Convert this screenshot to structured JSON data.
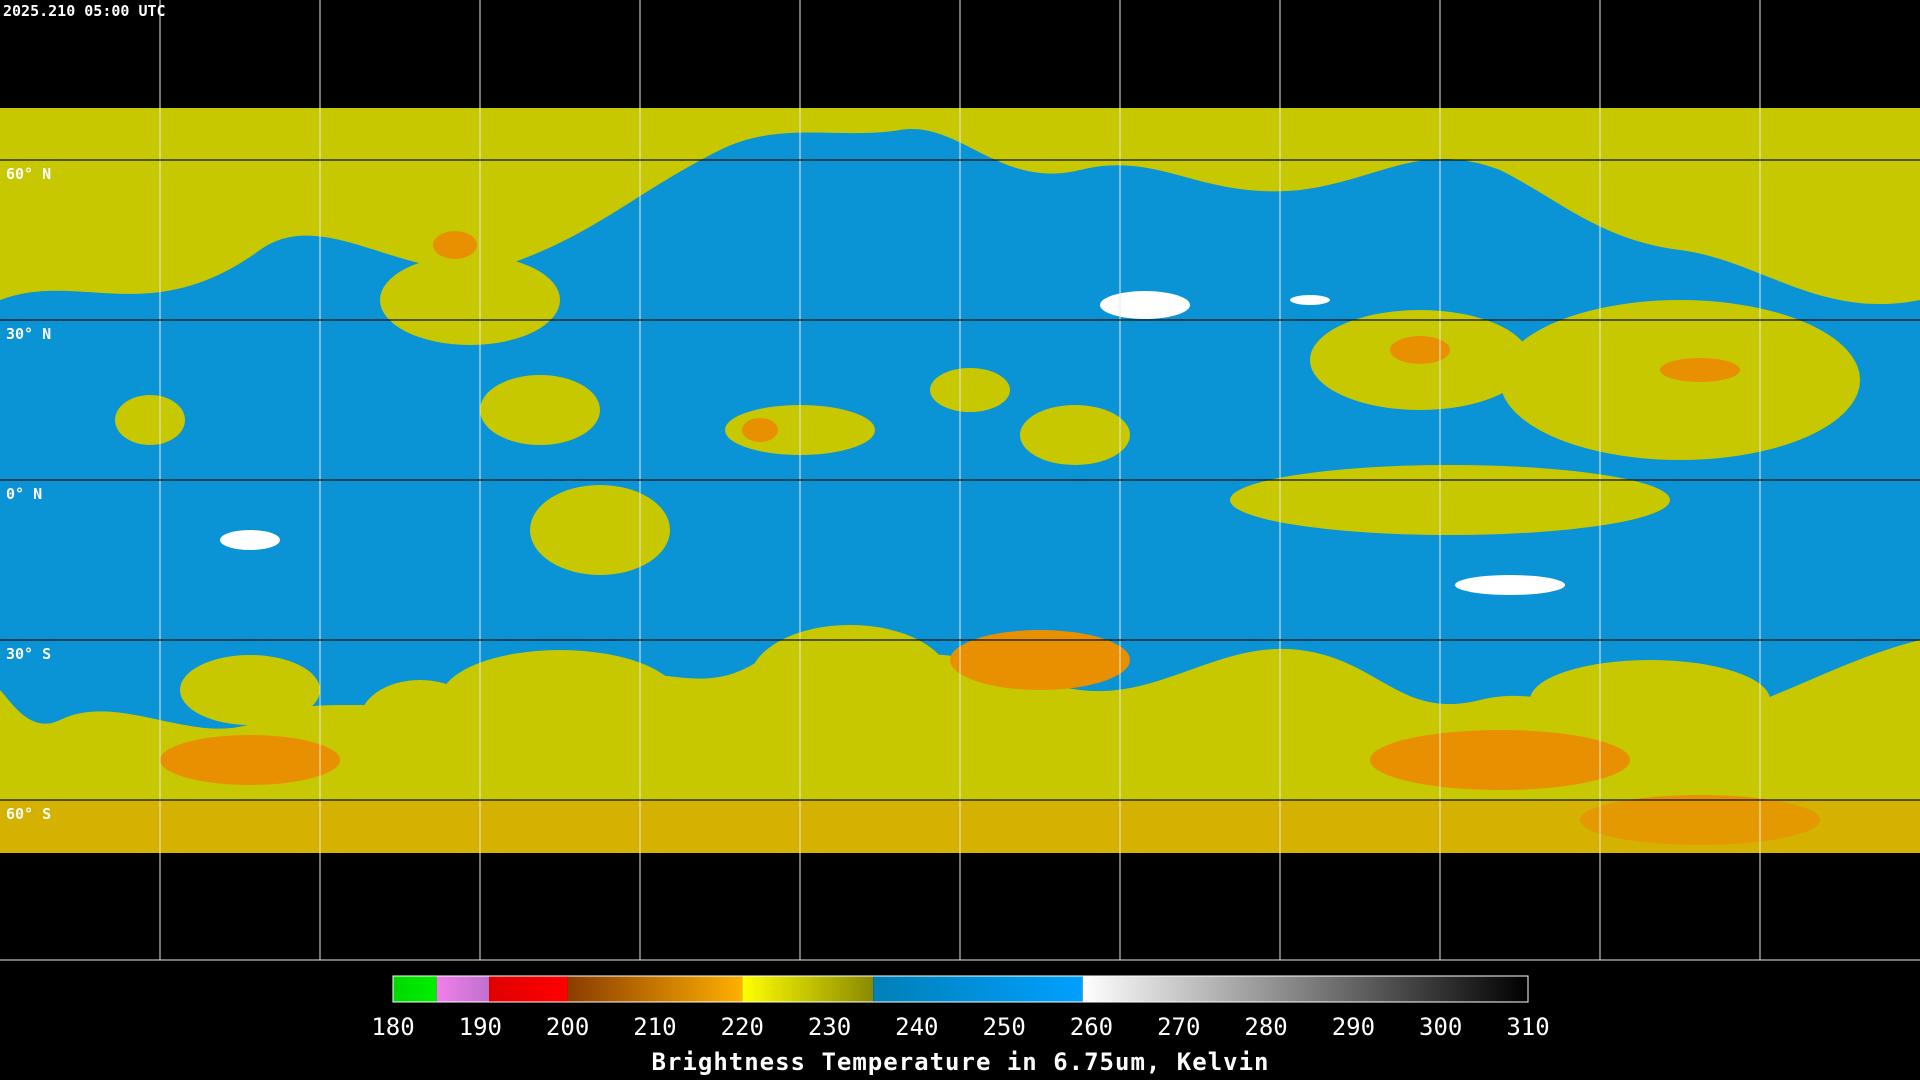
{
  "header": {
    "timestamp": "2025.210 05:00 UTC"
  },
  "map": {
    "latitudes": [
      {
        "value": 60,
        "label": "60° N"
      },
      {
        "value": 30,
        "label": "30° N"
      },
      {
        "value": 0,
        "label": "0° N"
      },
      {
        "value": -30,
        "label": "30° S"
      },
      {
        "value": -60,
        "label": "60° S"
      }
    ]
  },
  "colorbar": {
    "title": "Brightness Temperature in 6.75um, Kelvin",
    "range": [
      180,
      310
    ],
    "ticks": [
      180,
      190,
      200,
      210,
      220,
      230,
      240,
      250,
      260,
      270,
      280,
      290,
      300,
      310
    ],
    "segments": [
      {
        "range": [
          180,
          185
        ],
        "colors": [
          "#00d800",
          "#00f000"
        ]
      },
      {
        "range": [
          185,
          191
        ],
        "colors": [
          "#f080e8",
          "#c070d0"
        ]
      },
      {
        "range": [
          191,
          200
        ],
        "colors": [
          "#e00000",
          "#ff0000"
        ]
      },
      {
        "range": [
          200,
          220
        ],
        "colors": [
          "#8a3c00",
          "#ffb000"
        ]
      },
      {
        "range": [
          220,
          235
        ],
        "colors": [
          "#ffff00",
          "#8a8a00"
        ]
      },
      {
        "range": [
          235,
          259
        ],
        "colors": [
          "#0080b8",
          "#00a0ff"
        ]
      },
      {
        "range": [
          259,
          310
        ],
        "colors": [
          "#ffffff",
          "#000000"
        ]
      }
    ]
  }
}
